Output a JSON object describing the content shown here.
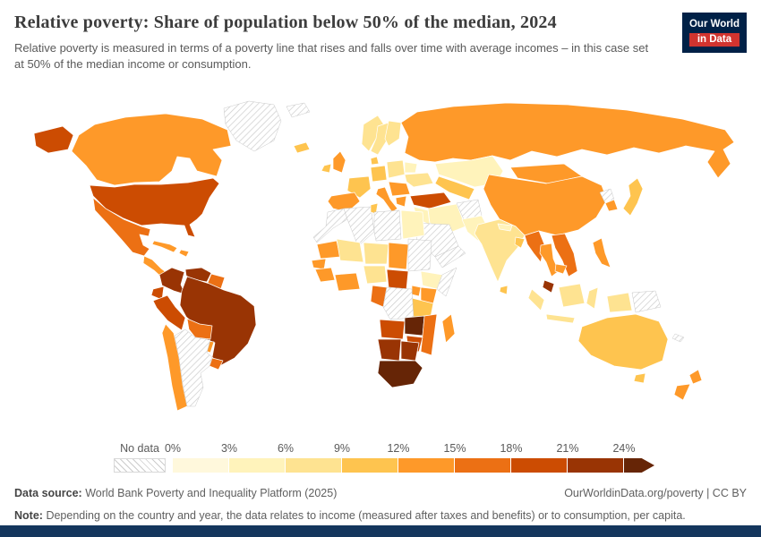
{
  "header": {
    "title": "Relative poverty: Share of population below 50% of the median, 2024",
    "subtitle": "Relative poverty is measured in terms of a poverty line that rises and falls over time with average incomes – in this case set at 50% of the median income or consumption.",
    "logo_line1": "Our World",
    "logo_line2": "in Data"
  },
  "legend": {
    "no_data_label": "No data",
    "ticks": [
      "0%",
      "3%",
      "6%",
      "9%",
      "12%",
      "15%",
      "18%",
      "21%",
      "24%"
    ],
    "colors": [
      "#fff8dc",
      "#fff3bb",
      "#fee391",
      "#fec44f",
      "#fe9929",
      "#ec7014",
      "#cc4c02",
      "#993404",
      "#662506"
    ],
    "no_data_border": "#d8d8d8"
  },
  "footer": {
    "source_label": "Data source:",
    "source_text": "World Bank Poverty and Inequality Platform (2025)",
    "link_text": "OurWorldinData.org/poverty | CC BY",
    "note_label": "Note:",
    "note_text": "Depending on the country and year, the data relates to income (measured after taxes and benefits) or to consumption, per capita."
  },
  "chart_data": {
    "type": "heatmap",
    "subtype": "choropleth_world_map",
    "title": "Relative poverty: Share of population below 50% of the median, 2024",
    "metric": "Share of population below 50% of median income or consumption",
    "unit": "%",
    "year": 2024,
    "bin_edges": [
      0,
      3,
      6,
      9,
      12,
      15,
      18,
      21,
      24
    ],
    "open_ended_top_bin": "24%+",
    "legend_position": "bottom",
    "no_data_style": "diagonal-hatch",
    "no_data_countries": [
      "Greenland",
      "Svalbard",
      "Argentina",
      "Morocco",
      "Algeria",
      "Libya",
      "Sudan",
      "Somalia",
      "Democratic Republic of Congo",
      "Saudi Arabia",
      "Yemen",
      "Afghanistan",
      "North Korea",
      "Papua New Guinea",
      "New Caledonia"
    ],
    "values": {
      "Canada": 12,
      "United States": 18,
      "Mexico": 15,
      "Guatemala": 13,
      "Cuba": 13,
      "Dominican Republic": 14,
      "Colombia": 21,
      "Venezuela": 21,
      "Guyana": 15,
      "Ecuador": 19,
      "Peru": 19,
      "Brazil": 22,
      "Bolivia": 15,
      "Paraguay": 14,
      "Uruguay": 15,
      "Chile": 13,
      "Iceland": 9,
      "Norway": 8,
      "Sweden": 8,
      "Finland": 7,
      "Denmark": 9,
      "United Kingdom": 12,
      "Ireland": 10,
      "Germany": 10,
      "France": 9,
      "Spain": 13,
      "Italy": 13,
      "Poland": 8,
      "Belarus": 5,
      "Ukraine": 6,
      "Romania": 14,
      "Greece": 13,
      "Turkey": 18,
      "Russia": 12,
      "Kazakhstan": 4,
      "Uzbekistan": 9,
      "Mongolia": 13,
      "China": 12,
      "South Korea": 12,
      "Japan": 10,
      "India": 6,
      "Pakistan": 4,
      "Nepal": 5,
      "Bangladesh": 9,
      "Sri Lanka": 11,
      "Iran": 5,
      "Iraq": 5,
      "Myanmar": 16,
      "Thailand": 12,
      "Vietnam": 16,
      "Cambodia": 12,
      "Malaysia": 21,
      "Philippines": 12,
      "Indonesia": 8,
      "Australia": 11,
      "New Zealand": 13,
      "Tunisia": 9,
      "Egypt": 4,
      "Mauritania": 12,
      "Mali": 6,
      "Niger": 6,
      "Chad": 13,
      "Senegal": 12,
      "Guinea": 13,
      "Ghana": 14,
      "Nigeria": 6,
      "Cameroon": 18,
      "Ethiopia": 5,
      "Kenya": 12,
      "Uganda": 12,
      "Tanzania": 9,
      "Republic of the Congo": 16,
      "Angola": 19,
      "Zambia": 24,
      "Mozambique": 16,
      "Zimbabwe": 19,
      "Namibia": 21,
      "Botswana": 21,
      "South Africa": 25,
      "Madagascar": 14
    }
  }
}
